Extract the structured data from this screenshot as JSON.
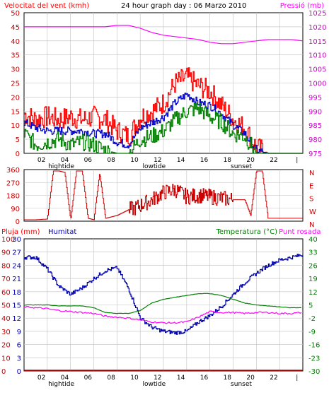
{
  "header": {
    "left_title": "Velocitat del vent (kmh)",
    "center_title": "24 hour graph day : 06 Marzo 2010",
    "right_title": "Pressió (mb)"
  },
  "panel3_header": {
    "rain_label": "Pluja (mm)",
    "humidity_label": "Humitat",
    "temperature_label": "Temperatura (°C)",
    "dewpoint_label": "Punt rosada"
  },
  "x_axis": {
    "tick_labels": [
      "02",
      "04",
      "06",
      "08",
      "10",
      "12",
      "14",
      "16",
      "18",
      "20",
      "22",
      "|"
    ],
    "events": [
      {
        "label": "hightide",
        "hour": 3.2
      },
      {
        "label": "lowtide",
        "hour": 11.2
      },
      {
        "label": "sunset",
        "hour": 18.7
      }
    ]
  },
  "colors": {
    "wind_gust": "#ff0000",
    "wind_avg": "#0000cc",
    "wind_low": "#008000",
    "pressure": "#ff00ff",
    "direction": "#cc0000",
    "humidity": "#0000aa",
    "temperature": "#008000",
    "dewpoint": "#ff00ff",
    "rain": "#cc0000",
    "grid": "#c0c0c0"
  },
  "chart_data": [
    {
      "type": "line",
      "title": "24 hour graph day : 06 Marzo 2010",
      "x_unit": "hour of day",
      "x_range": [
        0,
        24
      ],
      "ylabel": "Velocitat del vent (kmh)",
      "ylim": [
        0,
        50
      ],
      "y_ticks": [
        0,
        5,
        10,
        15,
        20,
        25,
        30,
        35,
        40,
        45,
        50
      ],
      "y2label": "Pressió (mb)",
      "y2lim": [
        975,
        1025
      ],
      "y2_ticks": [
        975,
        980,
        985,
        990,
        995,
        1000,
        1005,
        1010,
        1015,
        1020,
        1025
      ],
      "grid": true,
      "series": [
        {
          "name": "Velocitat del vent (kmh)",
          "axis": "left",
          "style": "gust",
          "x": [
            0,
            1,
            2,
            3,
            4,
            5,
            6,
            7,
            8,
            9,
            10,
            11,
            12,
            13,
            14,
            15,
            16,
            17,
            18,
            19,
            20,
            21,
            22,
            23,
            24
          ],
          "y": [
            14,
            12,
            13,
            12,
            13,
            12,
            13,
            12,
            8,
            6,
            13,
            15,
            18,
            25,
            27,
            24,
            22,
            17,
            12,
            9,
            2,
            0,
            0,
            0,
            0
          ]
        },
        {
          "name": "Velocitat del vent (kmh)",
          "axis": "left",
          "style": "average",
          "x": [
            0,
            1,
            2,
            3,
            4,
            5,
            6,
            7,
            8,
            9,
            10,
            11,
            12,
            13,
            14,
            15,
            16,
            17,
            18,
            19,
            20,
            21,
            22,
            23,
            24
          ],
          "y": [
            11,
            9,
            8,
            8,
            8,
            8,
            7,
            7,
            4,
            3,
            9,
            11,
            13,
            18,
            21,
            18,
            17,
            14,
            10,
            7,
            1,
            0,
            0,
            0,
            0
          ]
        },
        {
          "name": "Velocitat del vent (kmh)",
          "axis": "left",
          "style": "low",
          "x": [
            0,
            1,
            2,
            3,
            4,
            5,
            6,
            7,
            8,
            9,
            10,
            11,
            12,
            13,
            14,
            15,
            16,
            17,
            18,
            19,
            20,
            21,
            22,
            23,
            24
          ],
          "y": [
            7,
            3,
            4,
            5,
            3,
            4,
            3,
            1,
            0,
            0,
            5,
            6,
            8,
            12,
            15,
            16,
            13,
            11,
            7,
            6,
            0,
            0,
            0,
            0,
            0
          ]
        },
        {
          "name": "Pressió (mb)",
          "axis": "right",
          "x": [
            0,
            1,
            2,
            3,
            4,
            5,
            6,
            7,
            8,
            9,
            10,
            11,
            12,
            13,
            14,
            15,
            16,
            17,
            18,
            19,
            20,
            21,
            22,
            23,
            24
          ],
          "y": [
            1020,
            1020,
            1020,
            1020,
            1020,
            1020,
            1020,
            1020,
            1020.5,
            1020.5,
            1019.5,
            1018,
            1017,
            1016.5,
            1016,
            1015.5,
            1014.5,
            1014,
            1014,
            1014.5,
            1015,
            1015.5,
            1015.5,
            1015.5,
            1015
          ]
        }
      ]
    },
    {
      "type": "line",
      "x_unit": "hour of day",
      "x_range": [
        0,
        24
      ],
      "ylim": [
        0,
        360
      ],
      "y_ticks": [
        0,
        90,
        180,
        270,
        360
      ],
      "y_right_labels": [
        "N",
        "W",
        "S",
        "E",
        "N"
      ],
      "grid": true,
      "series": [
        {
          "name": "direction",
          "x": [
            0,
            1,
            2,
            2.5,
            3,
            3.5,
            4,
            4.5,
            5,
            5.5,
            6,
            6.5,
            7,
            7.5,
            8,
            8.5,
            9,
            9.5,
            10,
            11,
            12,
            13,
            14,
            15,
            16,
            17,
            18,
            19,
            19.5,
            20,
            20.5,
            21,
            22,
            23,
            24
          ],
          "y": [
            10,
            10,
            15,
            350,
            350,
            340,
            10,
            350,
            350,
            20,
            10,
            340,
            20,
            30,
            40,
            60,
            80,
            90,
            110,
            150,
            200,
            220,
            170,
            180,
            170,
            160,
            150,
            150,
            40,
            350,
            350,
            20,
            20,
            20,
            20
          ]
        }
      ]
    },
    {
      "type": "line",
      "x_unit": "hour of day",
      "x_range": [
        0,
        24
      ],
      "ylabel": "Pluja (mm)",
      "ylim": [
        0,
        100
      ],
      "y_ticks": [
        0,
        10,
        20,
        30,
        40,
        50,
        60,
        70,
        80,
        90,
        100
      ],
      "y2label": "Temperatura (°C)",
      "y2lim": [
        -30,
        40
      ],
      "y2_ticks": [
        -30,
        -23,
        -16,
        -9,
        -2,
        5,
        12,
        19,
        26,
        33,
        40
      ],
      "humidity_ticks": [
        0,
        3,
        6,
        9,
        12,
        15,
        18,
        21,
        24,
        27,
        30
      ],
      "grid": true,
      "series": [
        {
          "name": "Humitat",
          "axis": "left",
          "x": [
            0,
            1,
            2,
            3,
            4,
            5,
            6,
            7,
            8,
            9,
            10,
            11,
            12,
            13,
            14,
            15,
            16,
            17,
            18,
            19,
            20,
            21,
            22,
            23,
            24
          ],
          "y": [
            86,
            86,
            77,
            64,
            58,
            63,
            70,
            76,
            78,
            62,
            40,
            33,
            30,
            29,
            30,
            37,
            42,
            49,
            58,
            67,
            74,
            80,
            84,
            86,
            88
          ]
        },
        {
          "name": "Temperatura (°C)",
          "axis": "right",
          "x": [
            0,
            1,
            2,
            3,
            4,
            5,
            6,
            7,
            8,
            9,
            10,
            11,
            12,
            13,
            14,
            15,
            16,
            17,
            18,
            19,
            20,
            21,
            22,
            23,
            24
          ],
          "y": [
            5,
            5,
            5,
            4.5,
            4.5,
            4.5,
            3.5,
            1,
            0.5,
            0.5,
            2,
            6,
            8,
            9,
            10,
            11,
            11,
            10,
            8,
            6,
            5,
            4.5,
            4,
            3.5,
            3.5
          ]
        },
        {
          "name": "Punt rosada",
          "axis": "right",
          "x": [
            0,
            1,
            2,
            3,
            4,
            5,
            6,
            7,
            8,
            9,
            10,
            11,
            12,
            13,
            14,
            15,
            16,
            17,
            18,
            19,
            20,
            21,
            22,
            23,
            24
          ],
          "y": [
            4,
            3.5,
            3,
            2,
            1.5,
            1,
            0.5,
            -1,
            -1.5,
            -2,
            -3,
            -4,
            -4.5,
            -4.5,
            -4,
            -1.5,
            1.5,
            1,
            1,
            0.5,
            1,
            1,
            0.5,
            0.5,
            1
          ]
        },
        {
          "name": "Pluja (mm)",
          "axis": "left",
          "x": [
            0,
            24
          ],
          "y": [
            0,
            0
          ]
        }
      ]
    }
  ]
}
